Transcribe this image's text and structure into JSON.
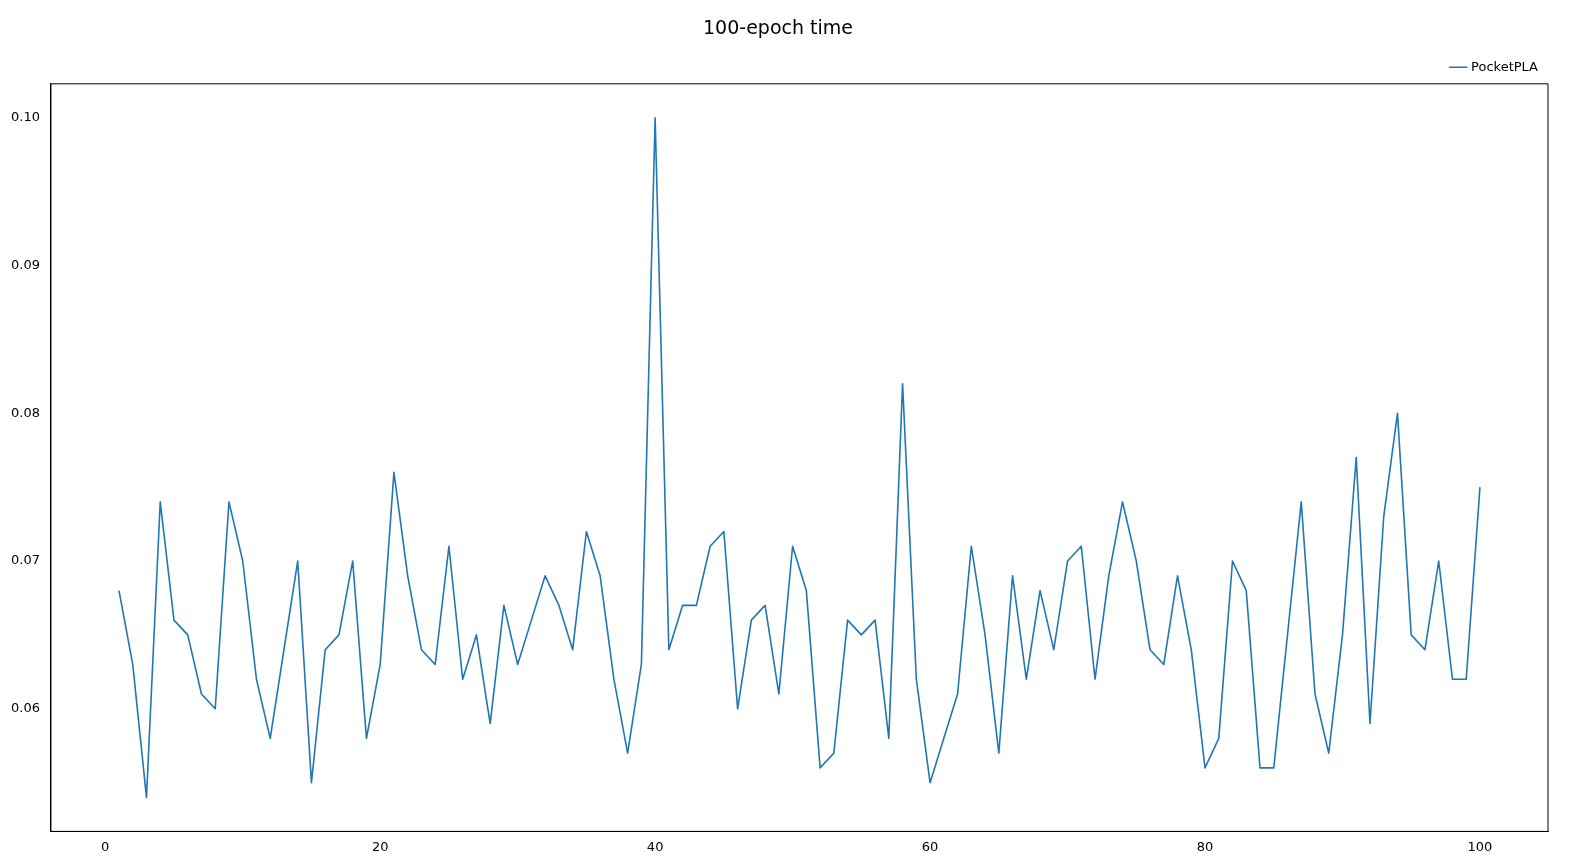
{
  "chart_data": {
    "type": "line",
    "title": "100-epoch time",
    "x": [
      1,
      2,
      3,
      4,
      5,
      6,
      7,
      8,
      9,
      10,
      11,
      12,
      13,
      14,
      15,
      16,
      17,
      18,
      19,
      20,
      21,
      22,
      23,
      24,
      25,
      26,
      27,
      28,
      29,
      30,
      31,
      32,
      33,
      34,
      35,
      36,
      37,
      38,
      39,
      40,
      41,
      42,
      43,
      44,
      45,
      46,
      47,
      48,
      49,
      50,
      51,
      52,
      53,
      54,
      55,
      56,
      57,
      58,
      59,
      60,
      61,
      62,
      63,
      64,
      65,
      66,
      67,
      68,
      69,
      70,
      71,
      72,
      73,
      74,
      75,
      76,
      77,
      78,
      79,
      80,
      81,
      82,
      83,
      84,
      85,
      86,
      87,
      88,
      89,
      90,
      91,
      92,
      93,
      94,
      95,
      96,
      97,
      98,
      99,
      100
    ],
    "series": [
      {
        "name": "PocketPLA",
        "color": "#1f77b4",
        "values": [
          0.068,
          0.063,
          0.054,
          0.074,
          0.066,
          0.065,
          0.061,
          0.06,
          0.074,
          0.07,
          0.062,
          0.058,
          0.064,
          0.07,
          0.055,
          0.064,
          0.065,
          0.07,
          0.058,
          0.063,
          0.076,
          0.069,
          0.064,
          0.063,
          0.071,
          0.062,
          0.065,
          0.059,
          0.067,
          0.063,
          0.066,
          0.069,
          0.067,
          0.064,
          0.072,
          0.069,
          0.062,
          0.057,
          0.063,
          0.1,
          0.064,
          0.067,
          0.067,
          0.071,
          0.072,
          0.06,
          0.066,
          0.067,
          0.061,
          0.071,
          0.068,
          0.056,
          0.057,
          0.066,
          0.065,
          0.066,
          0.058,
          0.082,
          0.062,
          0.055,
          0.058,
          0.061,
          0.071,
          0.065,
          0.057,
          0.069,
          0.062,
          0.068,
          0.064,
          0.07,
          0.071,
          0.062,
          0.069,
          0.074,
          0.07,
          0.064,
          0.063,
          0.069,
          0.064,
          0.056,
          0.058,
          0.07,
          0.068,
          0.056,
          0.056,
          0.065,
          0.074,
          0.061,
          0.057,
          0.065,
          0.077,
          0.059,
          0.073,
          0.08,
          0.065,
          0.064,
          0.07,
          0.062,
          0.062,
          0.075
        ]
      }
    ],
    "xlim": [
      -3.95,
      104.95
    ],
    "xticks": [
      0,
      20,
      40,
      60,
      80,
      100
    ],
    "ylim": [
      0.0517,
      0.1023
    ],
    "yticks": [
      0.06,
      0.07,
      0.08,
      0.09,
      {
        "value": 0.1,
        "label": "0.10"
      }
    ],
    "grid": false,
    "legend": "top right",
    "marker": "none",
    "line_style": "solid"
  }
}
